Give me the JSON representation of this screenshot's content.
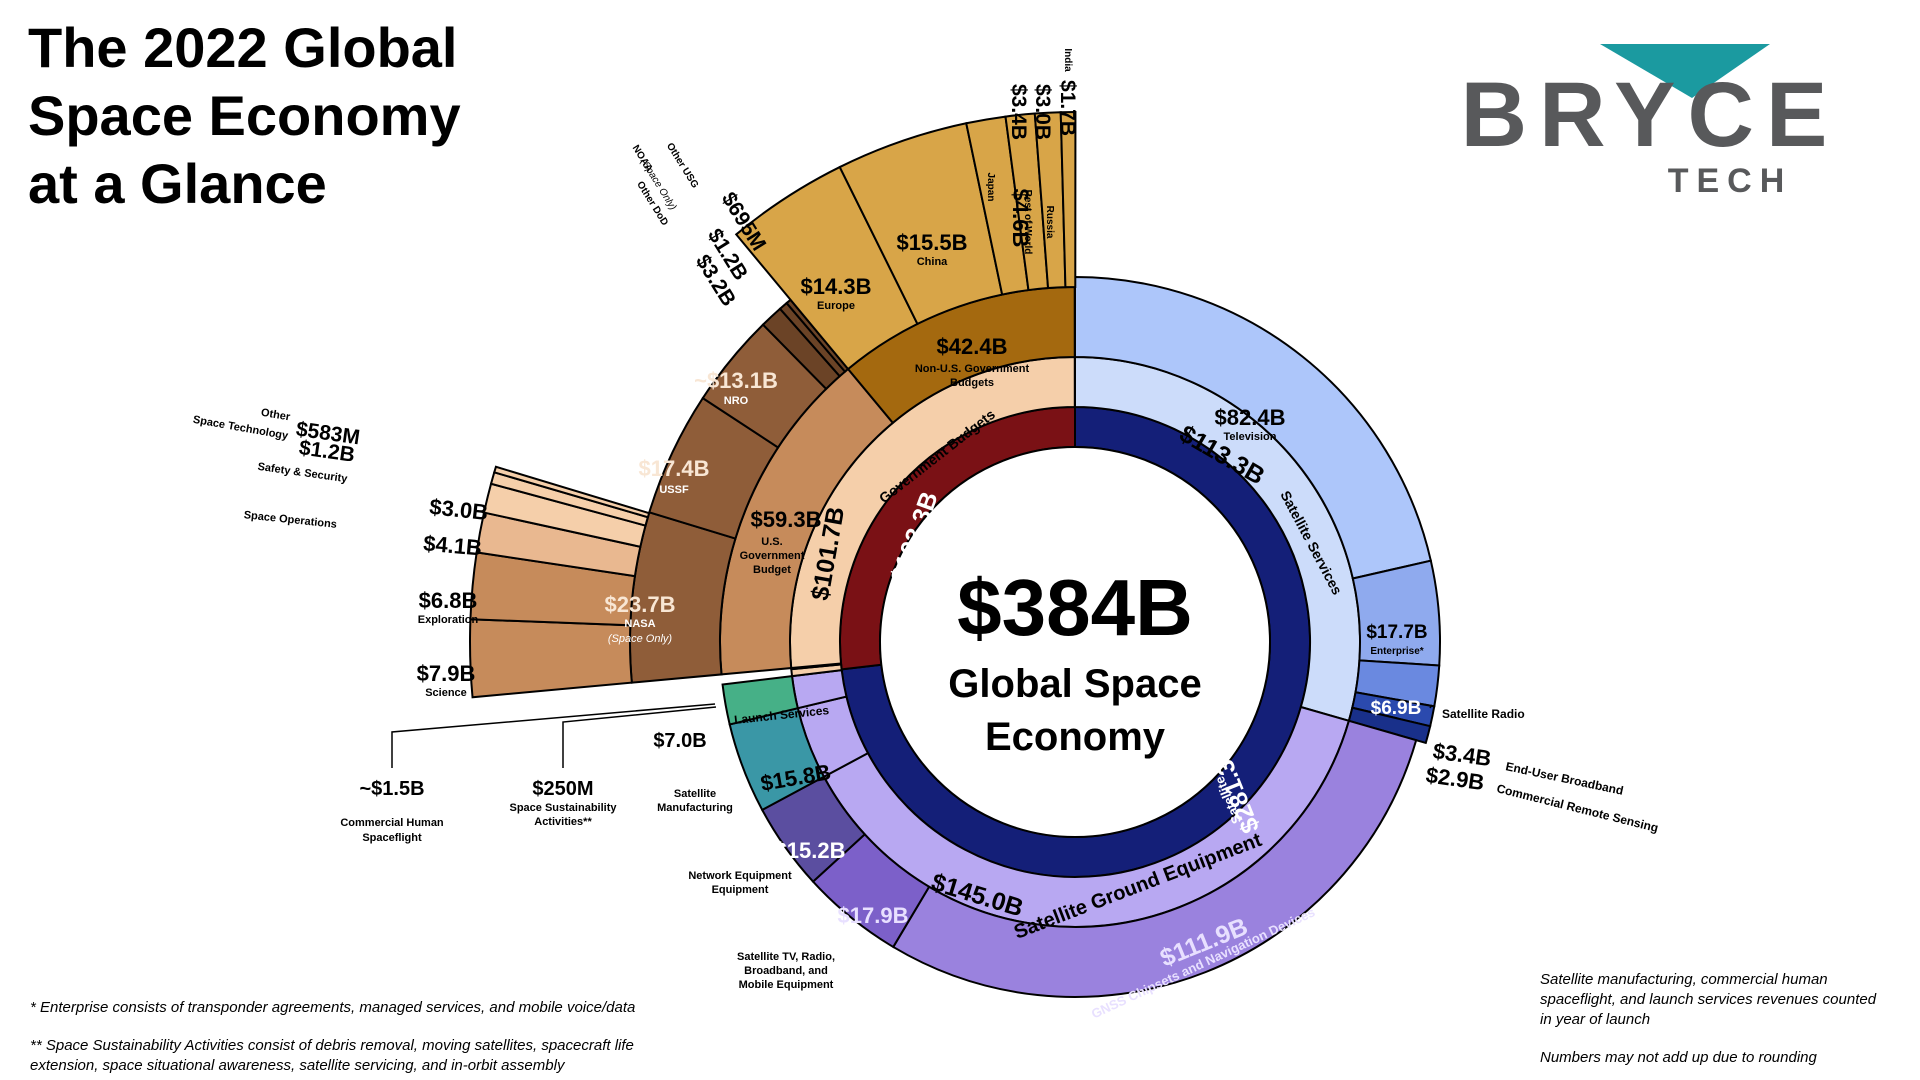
{
  "title": [
    "The 2022 Global",
    "Space Economy",
    "at a Glance"
  ],
  "logo": {
    "word": "BRYCE",
    "sub": "TECH",
    "accent_color": "#1b9aa0",
    "text_color": "#58595b"
  },
  "center": {
    "value": "$384B",
    "line1": "Global Space",
    "line2": "Economy"
  },
  "colors": {
    "nonsat_industry": "#7a1115",
    "sat_industry": "#141f78",
    "gov_ring": "#f5cfaa",
    "ground_ring": "#b8a8f2",
    "services_ring": "#ccdcfa",
    "nonus_gov": "#a4690f",
    "us_gov": "#c68b5b",
    "civil": "#8f5d39",
    "nro_dark": "#6b4326",
    "nonus_light": "#d8a548",
    "space_ops": "#e9b890",
    "launch": "#46b087",
    "sat_manuf": "#3a97a6",
    "network": "#5b4ea0",
    "sattv": "#7c60c9",
    "gnss": "#9a82de",
    "tv": "#adc6fa",
    "enterprise": "#8faaee",
    "radio": "#6a89e0",
    "broadband": "#2b4aae",
    "remote": "#19308a"
  },
  "chart_data": {
    "type": "sunburst",
    "total": {
      "value": 384,
      "label": "Global Space Economy"
    },
    "rings": [
      {
        "level": 1,
        "segments": [
          {
            "name": "Satellite Industry",
            "value": 281.3,
            "label": "$281.3B"
          },
          {
            "name": "Non-Satellite Industry",
            "value": 103.3,
            "label": "$103.3B"
          }
        ]
      },
      {
        "level": 2,
        "segments": [
          {
            "name": "Satellite Services",
            "value": 113.3,
            "label": "$113.3B"
          },
          {
            "name": "Satellite Ground Equipment",
            "value": 145.0,
            "label": "$145.0B"
          },
          {
            "name": "Satellite Manufacturing",
            "value": 15.8,
            "label": "$15.8B"
          },
          {
            "name": "Launch Services",
            "value": 7.0,
            "label": "$7.0B"
          },
          {
            "name": "Commercial Human Spaceflight",
            "value": 1.5,
            "label": "~$1.5B"
          },
          {
            "name": "Space Sustainability Activities**",
            "value": 0.25,
            "label": "$250M"
          },
          {
            "name": "Government Budgets",
            "value": 101.7,
            "label": "$101.7B"
          }
        ]
      },
      {
        "level": 3,
        "segments": [
          {
            "name": "Television",
            "value": 82.4,
            "label": "$82.4B"
          },
          {
            "name": "Enterprise*",
            "value": 17.7,
            "label": "$17.7B"
          },
          {
            "name": "Satellite Radio",
            "value": 6.9,
            "label": "$6.9B"
          },
          {
            "name": "End-User Broadband",
            "value": 3.4,
            "label": "$3.4B"
          },
          {
            "name": "Commercial Remote Sensing",
            "value": 2.9,
            "label": "$2.9B"
          },
          {
            "name": "GNSS Chipsets and Navigation Devices",
            "value": 111.9,
            "label": "$111.9B"
          },
          {
            "name": "Satellite TV, Radio, Broadband, and Mobile Equipment",
            "value": 17.9,
            "label": "$17.9B"
          },
          {
            "name": "Network Equipment",
            "value": 15.2,
            "label": "$15.2B"
          },
          {
            "name": "U.S. Government Budget",
            "value": 59.3,
            "label": "$59.3B"
          },
          {
            "name": "Non-U.S. Government Budgets",
            "value": 42.4,
            "label": "$42.4B"
          }
        ]
      },
      {
        "level": 4,
        "segments": [
          {
            "name": "NASA (Space Only)",
            "value": 23.7,
            "label": "$23.7B"
          },
          {
            "name": "USSF",
            "value": 17.4,
            "label": "$17.4B"
          },
          {
            "name": "NRO",
            "value": 13.1,
            "label": "~$13.1B"
          },
          {
            "name": "Other DoD",
            "value": 3.2,
            "label": "$3.2B"
          },
          {
            "name": "NOAA (Space Only)",
            "value": 1.2,
            "label": "$1.2B"
          },
          {
            "name": "Other USG",
            "value": 0.695,
            "label": "$695M"
          },
          {
            "name": "Europe",
            "value": 14.3,
            "label": "$14.3B"
          },
          {
            "name": "China",
            "value": 15.5,
            "label": "$15.5B"
          },
          {
            "name": "Japan",
            "value": 4.6,
            "label": "$4.6B"
          },
          {
            "name": "Rest of World",
            "value": 3.4,
            "label": "$3.4B"
          },
          {
            "name": "Russia",
            "value": 3.0,
            "label": "$3.0B"
          },
          {
            "name": "India",
            "value": 1.7,
            "label": "$1.7B"
          }
        ]
      },
      {
        "level": 5,
        "parent": "NASA (Space Only)",
        "segments": [
          {
            "name": "Science",
            "value": 7.9,
            "label": "$7.9B"
          },
          {
            "name": "Exploration",
            "value": 6.8,
            "label": "$6.8B"
          },
          {
            "name": "Space Operations",
            "value": 4.1,
            "label": "$4.1B"
          },
          {
            "name": "Safety & Security",
            "value": 3.0,
            "label": "$3.0B"
          },
          {
            "name": "Space Technology",
            "value": 1.2,
            "label": "$1.2B"
          },
          {
            "name": "Other",
            "value": 0.583,
            "label": "$583M"
          }
        ]
      }
    ]
  },
  "labels": {
    "space_only": "(Space Only)",
    "nasa": "NASA",
    "noaa": "NOAA",
    "other_usg": "Other USG",
    "other_dod": "Other DoD",
    "us_gov": [
      "U.S.",
      "Government",
      "Budget"
    ],
    "nonus_gov": [
      "Non-U.S. Government",
      "Budgets"
    ],
    "commercial_hs": [
      "Commercial Human",
      "Spaceflight"
    ],
    "sustain": [
      "Space Sustainability",
      "Activities**"
    ],
    "sat_manuf": [
      "Satellite",
      "Manufacturing"
    ],
    "sattv": [
      "Satellite TV, Radio,",
      "Broadband, and",
      "Mobile Equipment"
    ]
  },
  "footnotes": {
    "enterprise": "* Enterprise consists of transponder agreements, managed services, and mobile voice/data",
    "sustain1": "** Space Sustainability Activities consist of debris removal, moving satellites, spacecraft life",
    "sustain2": "extension, space situational awareness, satellite servicing, and in-orbit assembly",
    "right1": "Satellite manufacturing, commercial human",
    "right2": "spaceflight, and launch services revenues counted",
    "right3": "in year of launch",
    "right4": "Numbers may not add up due to rounding"
  }
}
